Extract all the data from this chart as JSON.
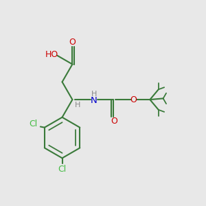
{
  "bg_color": "#e8e8e8",
  "bond_color": "#3a7a3a",
  "cl_color": "#44bb44",
  "o_color": "#cc0000",
  "n_color": "#0000cc",
  "h_color": "#888888",
  "line_width": 1.5,
  "figsize": [
    3.0,
    3.0
  ],
  "dpi": 100,
  "xlim": [
    0,
    10
  ],
  "ylim": [
    0,
    10
  ]
}
